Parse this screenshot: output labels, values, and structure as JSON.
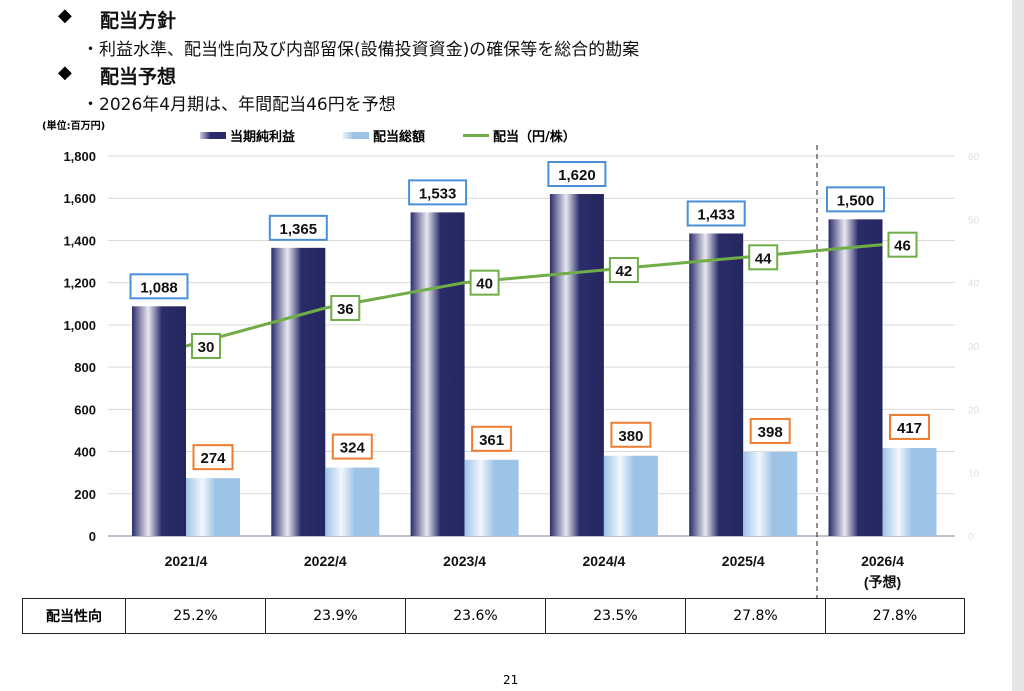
{
  "header": {
    "policy_title": "配当方針",
    "policy_text": "・利益水準、配当性向及び内部留保(設備投資資金)の確保等を総合的勘案",
    "forecast_title": "配当予想",
    "forecast_text": "・2026年4月期は、年間配当46円を予想",
    "diamond": "◆"
  },
  "unit_label": "(単位:百万円)",
  "chart_data": {
    "type": "bar",
    "categories": [
      "2021/4",
      "2022/4",
      "2023/4",
      "2024/4",
      "2025/4",
      "2026/4"
    ],
    "category_sub": [
      "",
      "",
      "",
      "",
      "",
      "(予想)"
    ],
    "series": [
      {
        "name": "当期純利益",
        "kind": "bar",
        "axis": "left",
        "color": "#2b2d6b",
        "values": [
          1088,
          1365,
          1533,
          1620,
          1433,
          1500
        ],
        "label_border": "#4a90d9"
      },
      {
        "name": "配当総額",
        "kind": "bar",
        "axis": "left",
        "color": "#9dc3e6",
        "values": [
          274,
          324,
          361,
          380,
          398,
          417
        ],
        "label_border": "#ed7d31"
      },
      {
        "name": "配当（円/株）",
        "kind": "line",
        "axis": "right",
        "color": "#70ad47",
        "values": [
          30,
          36,
          40,
          42,
          44,
          46
        ],
        "label_border": "#70ad47"
      }
    ],
    "left_axis": {
      "min": 0,
      "max": 1800,
      "step": 200,
      "ticks": [
        "0",
        "200",
        "400",
        "600",
        "800",
        "1,000",
        "1,200",
        "1,400",
        "1,600",
        "1,800"
      ]
    },
    "right_axis": {
      "min": 0,
      "max": 60,
      "step": 10,
      "ticks": [
        "0",
        "10",
        "20",
        "30",
        "40",
        "50",
        "60"
      ]
    },
    "grid": true,
    "legend": "top-center"
  },
  "payout_table": {
    "label": "配当性向",
    "values": [
      "25.2%",
      "23.9%",
      "23.6%",
      "23.5%",
      "27.8%",
      "27.8%"
    ]
  },
  "page_number": "21"
}
